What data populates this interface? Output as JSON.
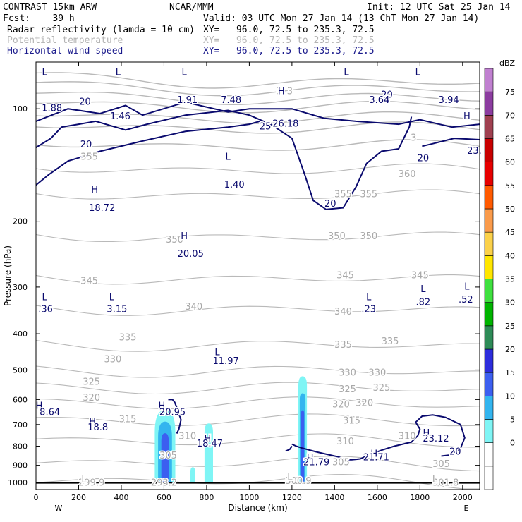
{
  "header": {
    "model": "CONTRAST 15km ARW",
    "org": "NCAR/MMM",
    "init": "Init: 12 UTC Sat 25 Jan 14",
    "fcst": "Fcst:    39 h",
    "valid": "Valid: 03 UTC Mon 27 Jan 14 (13 ChT Mon 27 Jan 14)",
    "fields": [
      {
        "name": "Radar reflectivity (lamda = 10 cm)",
        "xy": "XY=   96.0, 72.5 to 235.3, 72.5",
        "color": "#000000"
      },
      {
        "name": "Potential temperature",
        "xy": "XY=   96.0, 72.5 to 235.3, 72.5",
        "color": "#b4b4b4"
      },
      {
        "name": "Horizontal wind speed",
        "xy": "XY=   96.0, 72.5 to 235.3, 72.5",
        "color": "#1a1a8c"
      }
    ]
  },
  "chart_data": {
    "type": "cross-section",
    "xlabel": "Distance (km)",
    "ylabel": "Pressure (hPa)",
    "xlim": [
      0,
      2080
    ],
    "ylim": [
      1045,
      75
    ],
    "xticks": [
      0,
      200,
      400,
      600,
      800,
      1000,
      1200,
      1400,
      1600,
      1800,
      2000
    ],
    "yticks": [
      100,
      200,
      300,
      400,
      500,
      600,
      700,
      800,
      900,
      1000
    ],
    "end_labels": {
      "left": "W",
      "right": "E"
    },
    "colorbar": {
      "unit": "dBZ",
      "levels": [
        -5,
        0,
        5,
        10,
        15,
        20,
        25,
        30,
        35,
        40,
        45,
        50,
        55,
        60,
        65,
        70,
        75,
        80
      ],
      "tick_labels": [
        "0",
        "5",
        "10",
        "15",
        "20",
        "25",
        "30",
        "35",
        "40",
        "45",
        "50",
        "55",
        "60",
        "65",
        "70",
        "75"
      ],
      "colors": [
        "#ffffff",
        "#ffffff",
        "#7ff5f5",
        "#33b5ef",
        "#3c5ff0",
        "#2d2ddc",
        "#2e8b57",
        "#00b400",
        "#3fe03f",
        "#ffe600",
        "#fbd14a",
        "#fa9b4b",
        "#ff5a00",
        "#e60000",
        "#c80000",
        "#a04050",
        "#8c3ca0",
        "#c080d0"
      ]
    },
    "theta_labels": [
      {
        "text": "355",
        "x": 250,
        "p": 135
      },
      {
        "text": "355",
        "x": 1440,
        "p": 170
      },
      {
        "text": "355",
        "x": 1560,
        "p": 170
      },
      {
        "text": "360",
        "x": 1740,
        "p": 150
      },
      {
        "text": "350",
        "x": 650,
        "p": 225
      },
      {
        "text": "350",
        "x": 1410,
        "p": 220
      },
      {
        "text": "350",
        "x": 1560,
        "p": 220
      },
      {
        "text": "345",
        "x": 250,
        "p": 290
      },
      {
        "text": "345",
        "x": 1450,
        "p": 280
      },
      {
        "text": "345",
        "x": 1800,
        "p": 280
      },
      {
        "text": "340",
        "x": 740,
        "p": 340
      },
      {
        "text": "340",
        "x": 1440,
        "p": 350
      },
      {
        "text": "335",
        "x": 430,
        "p": 410
      },
      {
        "text": "335",
        "x": 1440,
        "p": 430
      },
      {
        "text": "335",
        "x": 1660,
        "p": 420
      },
      {
        "text": "330",
        "x": 360,
        "p": 470
      },
      {
        "text": "330",
        "x": 1460,
        "p": 510
      },
      {
        "text": "330",
        "x": 1600,
        "p": 510
      },
      {
        "text": "325",
        "x": 260,
        "p": 540
      },
      {
        "text": "325",
        "x": 1460,
        "p": 565
      },
      {
        "text": "325",
        "x": 1620,
        "p": 560
      },
      {
        "text": "320",
        "x": 260,
        "p": 595
      },
      {
        "text": "320",
        "x": 1430,
        "p": 620
      },
      {
        "text": "320",
        "x": 1540,
        "p": 615
      },
      {
        "text": "315",
        "x": 430,
        "p": 680
      },
      {
        "text": "315",
        "x": 1480,
        "p": 685
      },
      {
        "text": "310",
        "x": 710,
        "p": 755
      },
      {
        "text": "310",
        "x": 1450,
        "p": 780
      },
      {
        "text": "310",
        "x": 1740,
        "p": 755
      },
      {
        "text": "305",
        "x": 620,
        "p": 850
      },
      {
        "text": "305",
        "x": 1430,
        "p": 885
      },
      {
        "text": "305",
        "x": 1900,
        "p": 895
      },
      {
        "text": "299.9",
        "x": 260,
        "p": 1005
      },
      {
        "text": "293.2",
        "x": 600,
        "p": 1005
      },
      {
        "text": "300.9",
        "x": 1230,
        "p": 995
      },
      {
        "text": "301.8",
        "x": 1920,
        "p": 1005
      },
      {
        "text": "3",
        "x": 1140,
        "p": 90
      },
      {
        "text": "3",
        "x": 1190,
        "p": 90
      },
      {
        "text": "3",
        "x": 1770,
        "p": 120
      }
    ],
    "theta_extrema": [
      {
        "text": "L",
        "x": 225,
        "p": 985
      },
      {
        "text": "L",
        "x": 1190,
        "p": 970
      },
      {
        "text": "L",
        "x": 1870,
        "p": 985
      }
    ],
    "speed_labels": [
      {
        "text": "1.88",
        "x": 75,
        "p": 100
      },
      {
        "text": "1.46",
        "x": 395,
        "p": 105
      },
      {
        "text": "1.91",
        "x": 710,
        "p": 95
      },
      {
        "text": "7.48",
        "x": 915,
        "p": 95
      },
      {
        "text": "26.18",
        "x": 1170,
        "p": 110
      },
      {
        "text": "3.64",
        "x": 1610,
        "p": 95
      },
      {
        "text": "3.94",
        "x": 1935,
        "p": 95
      },
      {
        "text": "23.",
        "x": 2055,
        "p": 130
      },
      {
        "text": "1.40",
        "x": 930,
        "p": 160
      },
      {
        "text": "18.72",
        "x": 310,
        "p": 185
      },
      {
        "text": "20.05",
        "x": 725,
        "p": 245
      },
      {
        "text": ".36",
        "x": 45,
        "p": 345
      },
      {
        "text": "3.15",
        "x": 380,
        "p": 345
      },
      {
        "text": ".23",
        "x": 1560,
        "p": 345
      },
      {
        "text": ".82",
        "x": 1815,
        "p": 330
      },
      {
        "text": ".52",
        "x": 2015,
        "p": 325
      },
      {
        "text": "11.97",
        "x": 890,
        "p": 475
      },
      {
        "text": "8.64",
        "x": 65,
        "p": 650
      },
      {
        "text": "20.95",
        "x": 640,
        "p": 650
      },
      {
        "text": "18.8",
        "x": 290,
        "p": 715
      },
      {
        "text": "18.47",
        "x": 815,
        "p": 790
      },
      {
        "text": "23.12",
        "x": 1875,
        "p": 765
      },
      {
        "text": "21.71",
        "x": 1595,
        "p": 860
      },
      {
        "text": "21.79",
        "x": 1315,
        "p": 885
      }
    ],
    "speed_extrema": [
      {
        "text": "L",
        "x": 40,
        "p": 80
      },
      {
        "text": "L",
        "x": 385,
        "p": 80
      },
      {
        "text": "L",
        "x": 695,
        "p": 80
      },
      {
        "text": "L",
        "x": 1455,
        "p": 80
      },
      {
        "text": "L",
        "x": 1790,
        "p": 80
      },
      {
        "text": "H",
        "x": 1150,
        "p": 90
      },
      {
        "text": "H",
        "x": 2020,
        "p": 105
      },
      {
        "text": "L",
        "x": 900,
        "p": 135
      },
      {
        "text": "H",
        "x": 275,
        "p": 165
      },
      {
        "text": "H",
        "x": 695,
        "p": 220
      },
      {
        "text": "L",
        "x": 40,
        "p": 320
      },
      {
        "text": "L",
        "x": 355,
        "p": 320
      },
      {
        "text": "L",
        "x": 1560,
        "p": 320
      },
      {
        "text": "L",
        "x": 1815,
        "p": 305
      },
      {
        "text": "L",
        "x": 2020,
        "p": 300
      },
      {
        "text": "L",
        "x": 850,
        "p": 450
      },
      {
        "text": "H",
        "x": 15,
        "p": 625
      },
      {
        "text": "H",
        "x": 590,
        "p": 625
      },
      {
        "text": "H",
        "x": 265,
        "p": 690
      },
      {
        "text": "H",
        "x": 805,
        "p": 765
      },
      {
        "text": "H",
        "x": 1830,
        "p": 740
      },
      {
        "text": "H",
        "x": 1585,
        "p": 840
      },
      {
        "text": "H",
        "x": 1285,
        "p": 865
      }
    ],
    "speed_contour_labels": [
      {
        "text": "20",
        "x": 230,
        "p": 96
      },
      {
        "text": "20",
        "x": 235,
        "p": 125
      },
      {
        "text": "25",
        "x": 1075,
        "p": 112
      },
      {
        "text": "20",
        "x": 1645,
        "p": 92
      },
      {
        "text": "20",
        "x": 1815,
        "p": 136
      },
      {
        "text": "20",
        "x": 1380,
        "p": 180
      },
      {
        "text": "20",
        "x": 1965,
        "p": 830
      }
    ],
    "reflectivity_cells": [
      {
        "x_center": 605,
        "x_half": 48,
        "p_top": 640,
        "p_bottom": 1000,
        "max_dbz": 15
      },
      {
        "x_center": 810,
        "x_half": 20,
        "p_top": 695,
        "p_bottom": 1000,
        "max_dbz": 5
      },
      {
        "x_center": 735,
        "x_half": 11,
        "p_top": 910,
        "p_bottom": 1000,
        "max_dbz": 5
      },
      {
        "x_center": 1250,
        "x_half": 20,
        "p_top": 520,
        "p_bottom": 1000,
        "max_dbz": 15
      }
    ],
    "wind_20_contours": [
      [
        [
          0,
          108
        ],
        [
          150,
          100
        ],
        [
          300,
          103
        ],
        [
          420,
          98
        ],
        [
          500,
          104
        ],
        [
          700,
          96
        ],
        [
          900,
          102
        ],
        [
          1000,
          100
        ],
        [
          1200,
          100
        ],
        [
          1350,
          106
        ],
        [
          1500,
          108
        ],
        [
          1700,
          110
        ],
        [
          1800,
          107
        ],
        [
          1950,
          112
        ],
        [
          2080,
          110
        ]
      ],
      [
        [
          0,
          127
        ],
        [
          70,
          120
        ],
        [
          120,
          112
        ],
        [
          200,
          110
        ],
        [
          280,
          108
        ],
        [
          420,
          114
        ],
        [
          520,
          110
        ],
        [
          700,
          104
        ],
        [
          900,
          101
        ],
        [
          1000,
          104
        ],
        [
          1100,
          110
        ],
        [
          1200,
          120
        ],
        [
          1260,
          150
        ],
        [
          1300,
          176
        ],
        [
          1360,
          186
        ],
        [
          1440,
          184
        ],
        [
          1500,
          162
        ],
        [
          1550,
          140
        ],
        [
          1620,
          130
        ],
        [
          1700,
          128
        ],
        [
          1750,
          112
        ],
        [
          1760,
          105
        ]
      ],
      [
        [
          0,
          160
        ],
        [
          60,
          150
        ],
        [
          150,
          138
        ],
        [
          300,
          130
        ],
        [
          500,
          122
        ],
        [
          700,
          115
        ],
        [
          900,
          112
        ],
        [
          1000,
          110
        ],
        [
          1050,
          108
        ]
      ],
      [
        [
          1810,
          126
        ],
        [
          1860,
          124
        ],
        [
          1960,
          120
        ],
        [
          2080,
          121
        ]
      ],
      [
        [
          620,
          600
        ],
        [
          640,
          600
        ],
        [
          650,
          610
        ],
        [
          660,
          630
        ],
        [
          668,
          640
        ],
        [
          668,
          650
        ],
        [
          680,
          680
        ],
        [
          670,
          720
        ],
        [
          660,
          740
        ]
      ],
      [
        [
          1200,
          790
        ],
        [
          1220,
          800
        ],
        [
          1250,
          810
        ],
        [
          1320,
          830
        ],
        [
          1380,
          845
        ],
        [
          1420,
          855
        ],
        [
          1450,
          870
        ],
        [
          1480,
          870
        ],
        [
          1520,
          865
        ],
        [
          1560,
          845
        ],
        [
          1620,
          820
        ],
        [
          1680,
          800
        ],
        [
          1760,
          780
        ],
        [
          1790,
          750
        ],
        [
          1800,
          720
        ],
        [
          1780,
          690
        ],
        [
          1810,
          665
        ],
        [
          1860,
          660
        ],
        [
          1920,
          670
        ],
        [
          1990,
          700
        ],
        [
          2010,
          760
        ],
        [
          1990,
          810
        ],
        [
          1940,
          845
        ],
        [
          1900,
          850
        ]
      ],
      [
        [
          1170,
          825
        ],
        [
          1190,
          815
        ],
        [
          1200,
          800
        ]
      ]
    ]
  }
}
